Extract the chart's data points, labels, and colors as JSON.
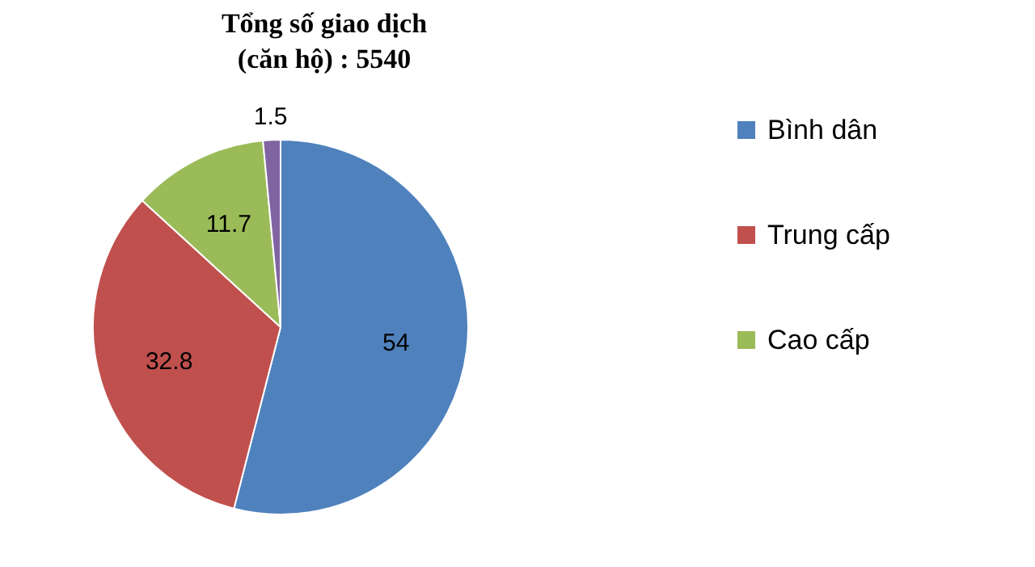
{
  "chart_data": {
    "type": "pie",
    "title": "Tổng số giao dịch\n(căn hộ) : 5540",
    "categories": [
      "Bình dân",
      "Trung cấp",
      "Cao cấp",
      null
    ],
    "values": [
      54,
      32.8,
      11.7,
      1.5
    ],
    "colors": [
      "#4f81bd",
      "#c0504d",
      "#9bbb59",
      "#8064a2"
    ],
    "data_labels": true,
    "legend": "right"
  }
}
